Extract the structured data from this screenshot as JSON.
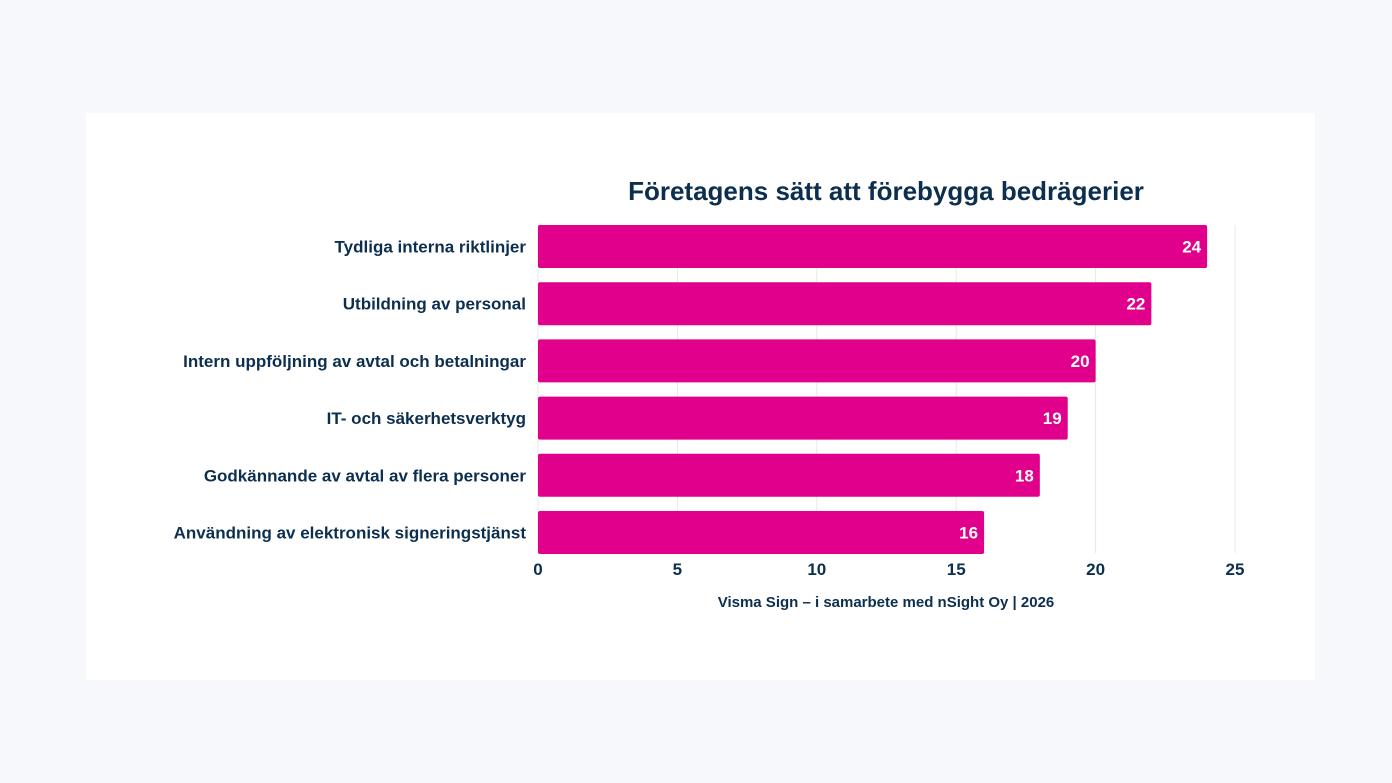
{
  "colors": {
    "page_background": "#f6f8fc",
    "card_background": "#ffffff",
    "bar": "#e0008c",
    "text": "#0d2f4f",
    "value_label": "#ffffff",
    "grid": "#e6e8ec"
  },
  "source_note": "Visma Sign – i samarbete med nSight Oy | 2026",
  "chart_data": {
    "type": "bar",
    "orientation": "horizontal",
    "title": "Företagens sätt att förebygga bedrägerier",
    "xlabel": "",
    "ylabel": "",
    "categories": [
      "Tydliga interna riktlinjer",
      "Utbildning av personal",
      "Intern uppföljning av avtal och betalningar",
      "IT- och säkerhetsverktyg",
      "Godkännande av avtal av flera personer",
      "Användning av elektronisk signeringstjänst"
    ],
    "values": [
      24,
      22,
      20,
      19,
      18,
      16
    ],
    "xlim": [
      0,
      25
    ],
    "xticks": [
      0,
      5,
      10,
      15,
      20,
      25
    ],
    "grid": true,
    "data_labels": true,
    "legend": "none"
  }
}
